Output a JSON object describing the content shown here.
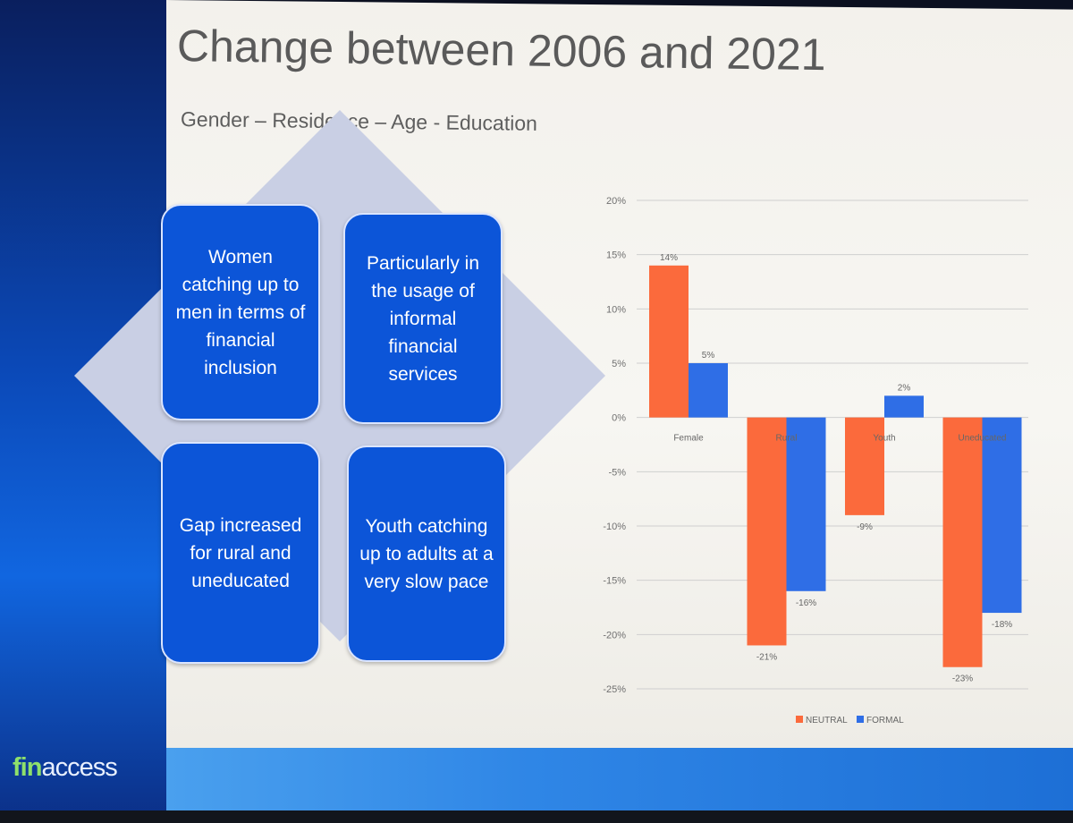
{
  "slide": {
    "title": "Change between 2006 and 2021",
    "subtitle": "Gender – Residence – Age - Education",
    "brand_prefix": "fin",
    "brand_suffix": "access"
  },
  "boxes": [
    {
      "text": "Women catching up to men in terms of financial inclusion"
    },
    {
      "text": "Particularly in the usage of informal financial services"
    },
    {
      "text": "Gap increased for rural and uneducated"
    },
    {
      "text": "Youth catching up to adults at a very slow pace"
    }
  ],
  "chart_data": {
    "type": "bar",
    "categories": [
      "Female",
      "Rural",
      "Youth",
      "Uneducated"
    ],
    "series": [
      {
        "name": "NEUTRAL",
        "color": "#fb6a3c",
        "values": [
          14,
          -21,
          -9,
          -23
        ],
        "labels": [
          "14%",
          "-21%",
          "-9%",
          "-23%"
        ]
      },
      {
        "name": "FORMAL",
        "color": "#2f6ee6",
        "values": [
          5,
          -16,
          2,
          -18
        ],
        "labels": [
          "5%",
          "-16%",
          "2%",
          "-18%"
        ]
      }
    ],
    "y_ticks": [
      "20%",
      "15%",
      "10%",
      "5%",
      "0%",
      "-5%",
      "-10%",
      "-15%",
      "-20%",
      "-25%"
    ],
    "ylim": [
      -25,
      20
    ],
    "grid": true,
    "legend": "bottom"
  }
}
